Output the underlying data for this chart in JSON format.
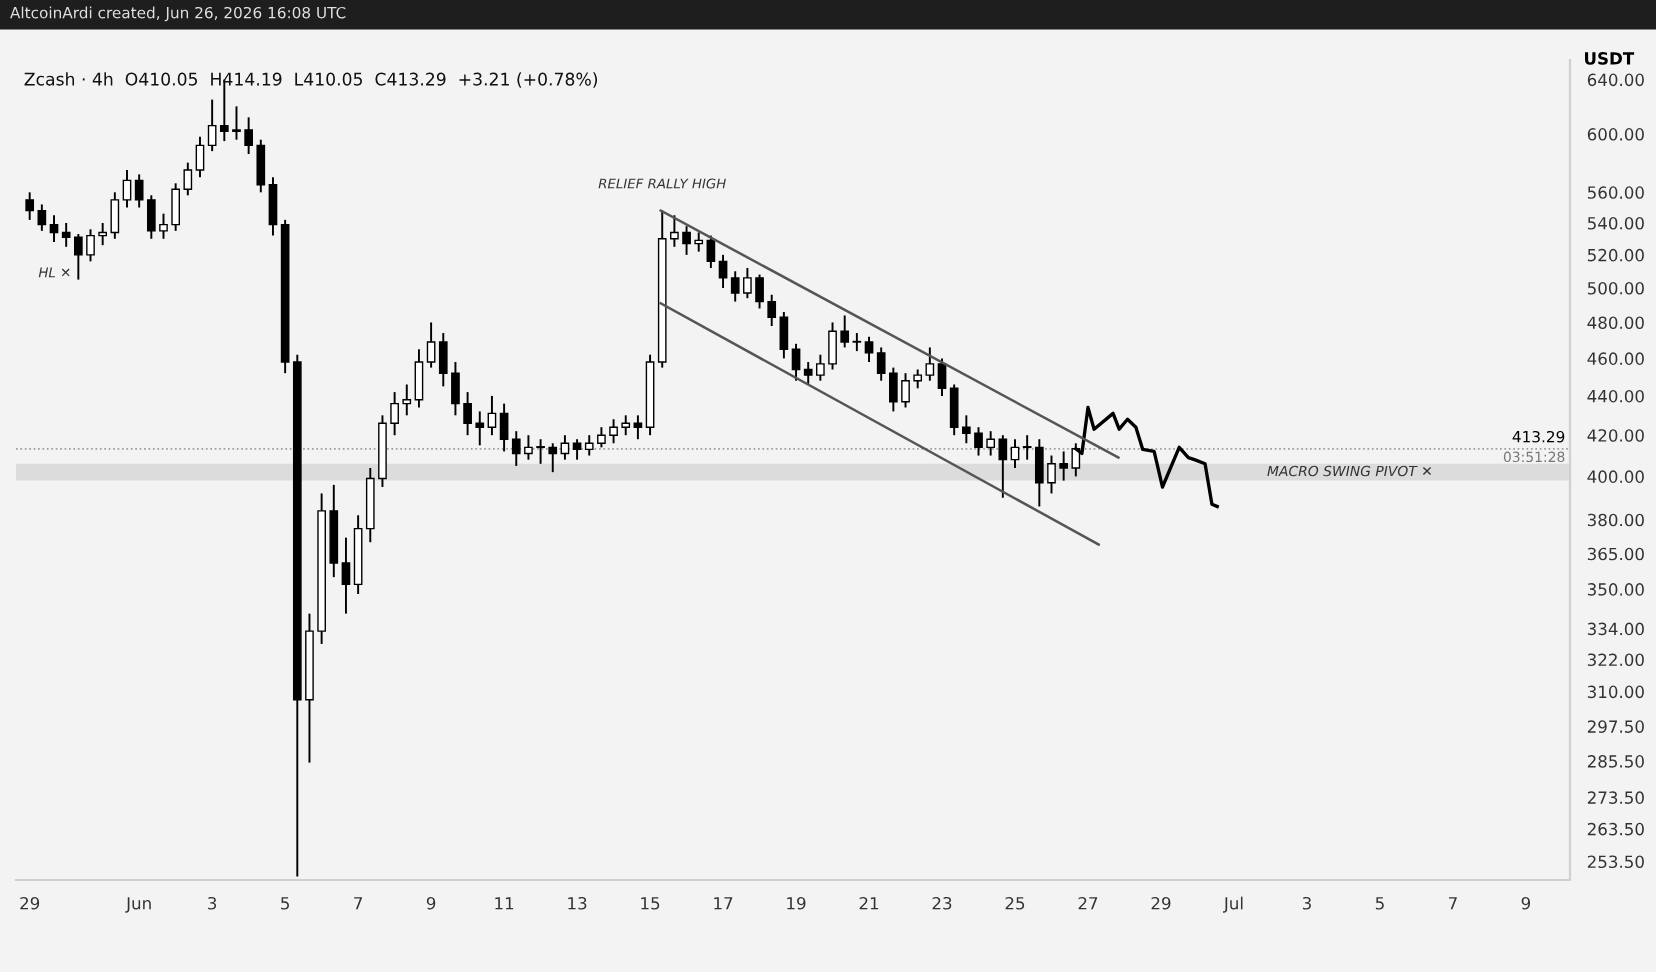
{
  "chart_data": {
    "type": "candlestick",
    "title": "Zcash · 4h  O410.05  H414.19  L410.05  C413.29  +3.21 (+0.78%)",
    "ylabel": "USDT",
    "log": "y",
    "annotations": [
      "AltcoinArdi created, Jun 26, 2026 16:08 UTC",
      {
        "text": "RELIEF RALLY HIGH",
        "x": "2026-06-15T08:00",
        "y": 548
      },
      "HL ✕",
      {
        "text": "03:51:28",
        "x": "2026-07-10T05:00",
        "y": 413.29
      }
    ],
    "ylim": [
      248,
      655
    ],
    "yticks": [
      {
        "value": 253.5,
        "label": "253.50"
      },
      {
        "value": 263.5,
        "label": "263.50"
      },
      {
        "value": 273.5,
        "label": "273.50"
      },
      {
        "value": 285.5,
        "label": "285.50"
      },
      {
        "value": 297.5,
        "label": "297.50"
      },
      {
        "value": 310,
        "label": "310.00"
      },
      {
        "value": 322,
        "label": "322.00"
      },
      {
        "value": 334,
        "label": "334.00"
      },
      {
        "value": 350,
        "label": "350.00"
      },
      {
        "value": 365,
        "label": "365.00"
      },
      {
        "value": 380,
        "label": "380.00"
      },
      {
        "value": 400,
        "label": "400.00"
      },
      {
        "value": 420,
        "label": "420.00"
      },
      {
        "value": 440,
        "label": "440.00"
      },
      {
        "value": 460,
        "label": "460.00"
      },
      {
        "value": 480,
        "label": "480.00"
      },
      {
        "value": 500,
        "label": "500.00"
      },
      {
        "value": 520,
        "label": "520.00"
      },
      {
        "value": 540,
        "label": "540.00"
      },
      {
        "value": 560,
        "label": "560.00"
      },
      {
        "value": 600,
        "label": "600.00"
      },
      {
        "value": 640,
        "label": "640.00"
      }
    ],
    "xlim": [
      "2026-05-28T15:00",
      "2026-07-10T05:00"
    ],
    "xticks": [
      {
        "value": "2026-05-29",
        "label": "29"
      },
      {
        "value": "2026-06-01",
        "label": "Jun"
      },
      {
        "value": "2026-06-03",
        "label": "3"
      },
      {
        "value": "2026-06-05",
        "label": "5"
      },
      {
        "value": "2026-06-07",
        "label": "7"
      },
      {
        "value": "2026-06-09",
        "label": "9"
      },
      {
        "value": "2026-06-11",
        "label": "11"
      },
      {
        "value": "2026-06-13",
        "label": "13"
      },
      {
        "value": "2026-06-15",
        "label": "15"
      },
      {
        "value": "2026-06-17",
        "label": "17"
      },
      {
        "value": "2026-06-19",
        "label": "19"
      },
      {
        "value": "2026-06-21",
        "label": "21"
      },
      {
        "value": "2026-06-23",
        "label": "23"
      },
      {
        "value": "2026-06-25",
        "label": "25"
      },
      {
        "value": "2026-06-27",
        "label": "27"
      },
      {
        "value": "2026-06-29",
        "label": "29"
      },
      {
        "value": "2026-07-01",
        "label": "Jul"
      },
      {
        "value": "2026-07-03",
        "label": "3"
      },
      {
        "value": "2026-07-05",
        "label": "5"
      },
      {
        "value": "2026-07-07",
        "label": "7"
      },
      {
        "value": "2026-07-09",
        "label": "9"
      }
    ],
    "ref_lines": [
      {
        "axis": "y",
        "value": 413.29,
        "label": "413.29",
        "color": "#9e9e9e",
        "line_style": "dotted"
      }
    ],
    "bands": [
      {
        "axis": "y",
        "from": 398,
        "to": 406,
        "label": "MACRO SWING PIVOT ✕",
        "color": "#dcdcdc"
      }
    ],
    "grid": false,
    "legend": false,
    "x": [
      "2026-05-29T00:00",
      "2026-05-29T08:00",
      "2026-05-29T16:00",
      "2026-05-30T00:00",
      "2026-05-30T08:00",
      "2026-05-30T16:00",
      "2026-05-31T00:00",
      "2026-05-31T08:00",
      "2026-05-31T16:00",
      "2026-06-01T00:00",
      "2026-06-01T08:00",
      "2026-06-01T16:00",
      "2026-06-02T00:00",
      "2026-06-02T08:00",
      "2026-06-02T16:00",
      "2026-06-03T00:00",
      "2026-06-03T08:00",
      "2026-06-03T16:00",
      "2026-06-04T00:00",
      "2026-06-04T08:00",
      "2026-06-04T16:00",
      "2026-06-05T00:00",
      "2026-06-05T08:00",
      "2026-06-05T16:00",
      "2026-06-06T00:00",
      "2026-06-06T08:00",
      "2026-06-06T16:00",
      "2026-06-07T00:00",
      "2026-06-07T08:00",
      "2026-06-07T16:00",
      "2026-06-08T00:00",
      "2026-06-08T08:00",
      "2026-06-08T16:00",
      "2026-06-09T00:00",
      "2026-06-09T08:00",
      "2026-06-09T16:00",
      "2026-06-10T00:00",
      "2026-06-10T08:00",
      "2026-06-10T16:00",
      "2026-06-11T00:00",
      "2026-06-11T08:00",
      "2026-06-11T16:00",
      "2026-06-12T00:00",
      "2026-06-12T08:00",
      "2026-06-12T16:00",
      "2026-06-13T00:00",
      "2026-06-13T08:00",
      "2026-06-13T16:00",
      "2026-06-14T00:00",
      "2026-06-14T08:00",
      "2026-06-14T16:00",
      "2026-06-15T00:00",
      "2026-06-15T08:00",
      "2026-06-15T16:00",
      "2026-06-16T00:00",
      "2026-06-16T08:00",
      "2026-06-16T16:00",
      "2026-06-17T00:00",
      "2026-06-17T08:00",
      "2026-06-17T16:00",
      "2026-06-18T00:00",
      "2026-06-18T08:00",
      "2026-06-18T16:00",
      "2026-06-19T00:00",
      "2026-06-19T08:00",
      "2026-06-19T16:00",
      "2026-06-20T00:00",
      "2026-06-20T08:00",
      "2026-06-20T16:00",
      "2026-06-21T00:00",
      "2026-06-21T08:00",
      "2026-06-21T16:00",
      "2026-06-22T00:00",
      "2026-06-22T08:00",
      "2026-06-22T16:00",
      "2026-06-23T00:00",
      "2026-06-23T08:00",
      "2026-06-23T16:00",
      "2026-06-24T00:00",
      "2026-06-24T08:00",
      "2026-06-24T16:00",
      "2026-06-25T00:00",
      "2026-06-25T08:00",
      "2026-06-25T16:00",
      "2026-06-26T00:00",
      "2026-06-26T08:00",
      "2026-06-26T16:00"
    ],
    "ohlc": [
      [
        555,
        560,
        542,
        548
      ],
      [
        548,
        552,
        535,
        539
      ],
      [
        539,
        545,
        528,
        534
      ],
      [
        534,
        540,
        525,
        531
      ],
      [
        531,
        533,
        505,
        520
      ],
      [
        520,
        536,
        516,
        532
      ],
      [
        532,
        540,
        526,
        534
      ],
      [
        534,
        560,
        530,
        555
      ],
      [
        555,
        575,
        550,
        568
      ],
      [
        568,
        572,
        550,
        555
      ],
      [
        555,
        558,
        530,
        535
      ],
      [
        535,
        546,
        530,
        539
      ],
      [
        539,
        566,
        535,
        562
      ],
      [
        562,
        580,
        558,
        575
      ],
      [
        575,
        598,
        570,
        592
      ],
      [
        592,
        625,
        588,
        606
      ],
      [
        606,
        640,
        595,
        602
      ],
      [
        602,
        620,
        596,
        603
      ],
      [
        603,
        612,
        586,
        592
      ],
      [
        592,
        596,
        560,
        565
      ],
      [
        565,
        570,
        532,
        539
      ],
      [
        539,
        542,
        452,
        458
      ],
      [
        458,
        462,
        249,
        307
      ],
      [
        307,
        340,
        285,
        333
      ],
      [
        333,
        392,
        328,
        384
      ],
      [
        384,
        396,
        355,
        361
      ],
      [
        361,
        372,
        340,
        352
      ],
      [
        352,
        382,
        348,
        376
      ],
      [
        376,
        404,
        370,
        399
      ],
      [
        399,
        430,
        395,
        426
      ],
      [
        426,
        442,
        420,
        436
      ],
      [
        436,
        446,
        430,
        438
      ],
      [
        438,
        465,
        434,
        458
      ],
      [
        458,
        480,
        455,
        469
      ],
      [
        469,
        474,
        445,
        452
      ],
      [
        452,
        458,
        430,
        436
      ],
      [
        436,
        442,
        420,
        426
      ],
      [
        426,
        432,
        415,
        424
      ],
      [
        424,
        440,
        420,
        431
      ],
      [
        431,
        436,
        412,
        418
      ],
      [
        418,
        422,
        405,
        411
      ],
      [
        411,
        420,
        408,
        414
      ],
      [
        414,
        418,
        406,
        414
      ],
      [
        414,
        416,
        402,
        411
      ],
      [
        411,
        420,
        408,
        416
      ],
      [
        416,
        418,
        408,
        413
      ],
      [
        413,
        420,
        410,
        416
      ],
      [
        416,
        424,
        414,
        420
      ],
      [
        420,
        428,
        416,
        424
      ],
      [
        424,
        430,
        420,
        426
      ],
      [
        426,
        430,
        418,
        424
      ],
      [
        424,
        462,
        420,
        458
      ],
      [
        458,
        548,
        455,
        530
      ],
      [
        530,
        545,
        525,
        534
      ],
      [
        534,
        538,
        520,
        527
      ],
      [
        527,
        534,
        522,
        529
      ],
      [
        529,
        532,
        512,
        516
      ],
      [
        516,
        520,
        500,
        506
      ],
      [
        506,
        510,
        492,
        497
      ],
      [
        497,
        512,
        494,
        506
      ],
      [
        506,
        508,
        488,
        492
      ],
      [
        492,
        496,
        478,
        483
      ],
      [
        483,
        486,
        460,
        465
      ],
      [
        465,
        468,
        448,
        454
      ],
      [
        454,
        458,
        446,
        451
      ],
      [
        451,
        462,
        448,
        457
      ],
      [
        457,
        480,
        454,
        475
      ],
      [
        475,
        484,
        466,
        469
      ],
      [
        469,
        474,
        464,
        469
      ],
      [
        469,
        472,
        458,
        463
      ],
      [
        463,
        466,
        448,
        452
      ],
      [
        452,
        455,
        432,
        437
      ],
      [
        437,
        452,
        434,
        448
      ],
      [
        448,
        454,
        444,
        451
      ],
      [
        451,
        466,
        448,
        457
      ],
      [
        457,
        460,
        440,
        444
      ],
      [
        444,
        446,
        420,
        424
      ],
      [
        424,
        430,
        416,
        421
      ],
      [
        421,
        424,
        410,
        414
      ],
      [
        414,
        422,
        410,
        418
      ],
      [
        418,
        420,
        390,
        408
      ],
      [
        408,
        418,
        404,
        414
      ],
      [
        414,
        420,
        408,
        414
      ],
      [
        414,
        418,
        386,
        397
      ],
      [
        397,
        410,
        392,
        406
      ],
      [
        406,
        412,
        398,
        404
      ],
      [
        404,
        416,
        400,
        413.29
      ]
    ],
    "series": [
      {
        "type": "line",
        "color": "#000000",
        "x": [
          "2026-06-26T16:00",
          "2026-06-26T20:00",
          "2026-06-27T00:00",
          "2026-06-27T04:00",
          "2026-06-27T16:30",
          "2026-06-27T20:30",
          "2026-06-28T02:00",
          "2026-06-28T07:30",
          "2026-06-28T12:00",
          "2026-06-28T19:30",
          "2026-06-29T01:00",
          "2026-06-29T12:00",
          "2026-06-29T18:00",
          "2026-06-29T22:00",
          "2026-06-30T05:00",
          "2026-06-30T09:30",
          "2026-06-30T13:00"
        ],
        "values": [
          413.29,
          411,
          434,
          423,
          431,
          423,
          428,
          424,
          413,
          412,
          395,
          414,
          409,
          408,
          406,
          387,
          386
        ]
      },
      {
        "type": "line",
        "color": "#555555",
        "x": [
          "2026-06-15T07:00",
          "2026-06-27T20:00"
        ],
        "values": [
          548,
          409
        ]
      },
      {
        "type": "line",
        "color": "#555555",
        "x": [
          "2026-06-15T07:00",
          "2026-06-27T07:00"
        ],
        "values": [
          491,
          369
        ]
      }
    ]
  }
}
